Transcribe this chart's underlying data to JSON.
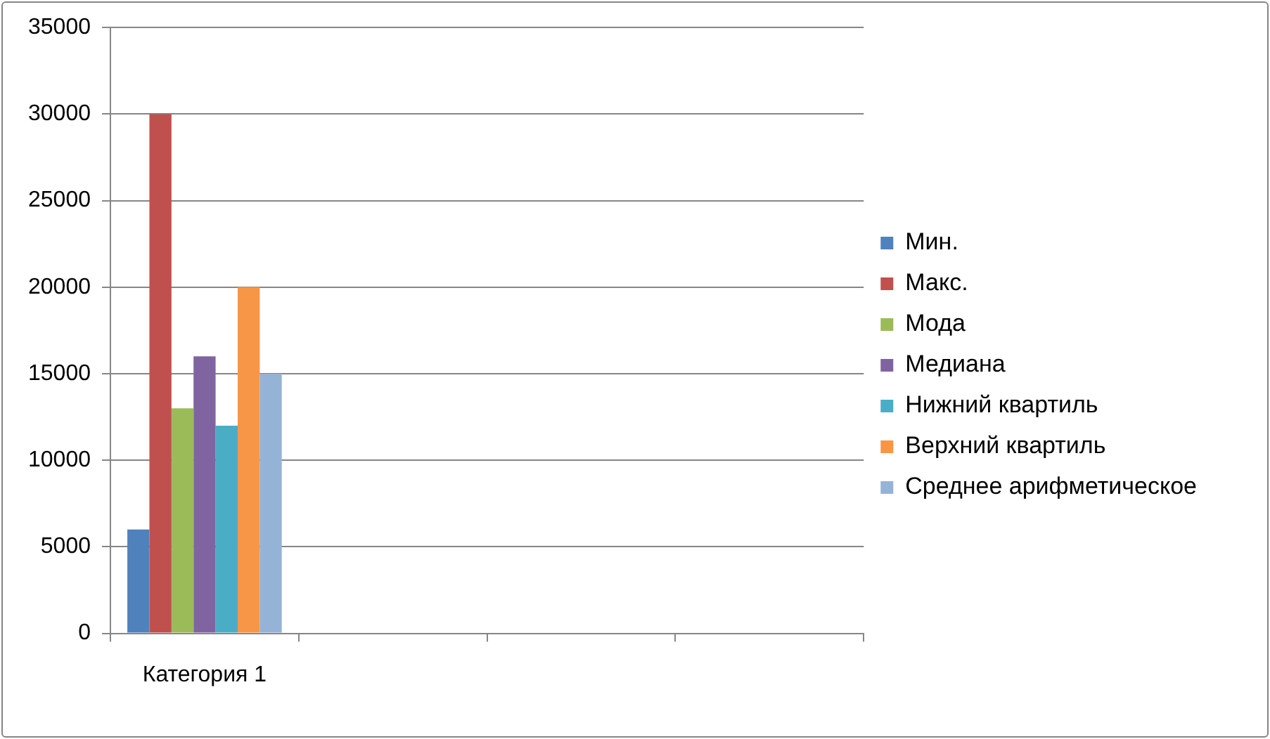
{
  "chart_data": {
    "type": "bar",
    "categories": [
      "Категория 1",
      null,
      null,
      null
    ],
    "series": [
      {
        "name": "Мин.",
        "color": "#4f81bd",
        "values": [
          6000,
          null,
          null,
          null
        ]
      },
      {
        "name": "Макс.",
        "color": "#c0504d",
        "values": [
          30000,
          null,
          null,
          null
        ]
      },
      {
        "name": "Мода",
        "color": "#9bbb59",
        "values": [
          13000,
          null,
          null,
          null
        ]
      },
      {
        "name": "Медиана",
        "color": "#8064a2",
        "values": [
          16000,
          null,
          null,
          null
        ]
      },
      {
        "name": "Нижний квартиль",
        "color": "#4bacc6",
        "values": [
          12000,
          null,
          null,
          null
        ]
      },
      {
        "name": "Верхний квартиль",
        "color": "#f79646",
        "values": [
          20000,
          null,
          null,
          null
        ]
      },
      {
        "name": "Среднее арифметическое",
        "color": "#95b3d7",
        "values": [
          15000,
          null,
          null,
          null
        ]
      }
    ],
    "ylim": [
      0,
      35000
    ],
    "yticks": [
      0,
      5000,
      10000,
      15000,
      20000,
      25000,
      30000,
      35000
    ],
    "grid": "y",
    "legend": "right"
  }
}
